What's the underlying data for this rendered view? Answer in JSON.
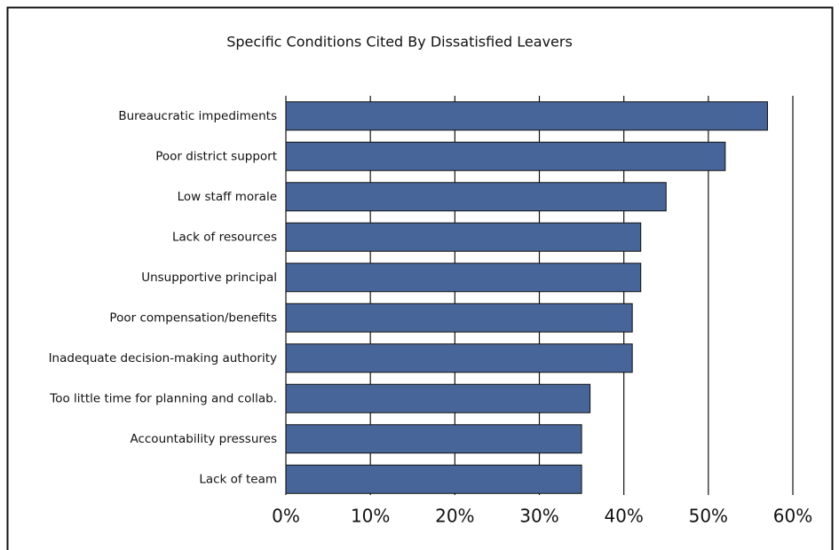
{
  "chart_data": {
    "type": "bar",
    "orientation": "horizontal",
    "title": "Specific Conditions Cited By Dissatisfied Leavers",
    "categories": [
      "Bureaucratic impediments",
      "Poor district support",
      "Low staff morale",
      "Lack of resources",
      "Unsupportive principal",
      "Poor compensation/benefits",
      "Inadequate decision-making authority",
      "Too little time for planning and collab.",
      "Accountability pressures",
      "Lack of team"
    ],
    "values": [
      57,
      52,
      45,
      42,
      42,
      41,
      41,
      36,
      35,
      35
    ],
    "color": "#48659a",
    "xlim": [
      0,
      60
    ],
    "xticks": [
      {
        "value": 0,
        "label": "0%"
      },
      {
        "value": 10,
        "label": "10%"
      },
      {
        "value": 20,
        "label": "20%"
      },
      {
        "value": 30,
        "label": "30%"
      },
      {
        "value": 40,
        "label": "40%"
      },
      {
        "value": 50,
        "label": "50%"
      },
      {
        "value": 60,
        "label": "60%"
      }
    ],
    "grid": true
  }
}
